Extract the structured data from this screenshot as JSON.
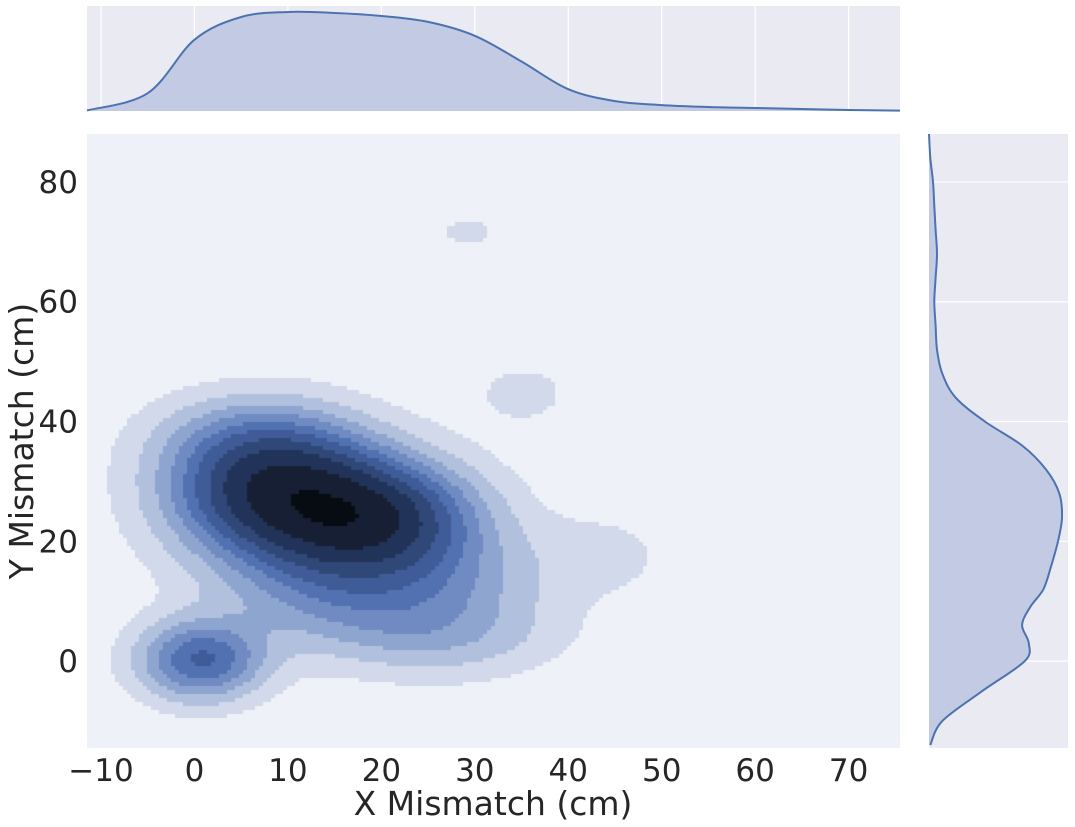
{
  "chart_data": {
    "type": "heatmap",
    "subtype": "joint-kde",
    "title": "",
    "xlabel": "X Mismatch (cm)",
    "ylabel": "Y Mismatch (cm)",
    "xlim": [
      -11.5,
      75.5
    ],
    "ylim": [
      -14.5,
      88
    ],
    "xticks": [
      -10,
      0,
      10,
      20,
      30,
      40,
      50,
      60,
      70
    ],
    "xtick_labels": [
      "−10",
      "0",
      "10",
      "20",
      "30",
      "40",
      "50",
      "60",
      "70"
    ],
    "yticks": [
      0,
      20,
      40,
      60,
      80
    ],
    "ytick_labels": [
      "0",
      "20",
      "40",
      "60",
      "80"
    ],
    "grid": true,
    "levels": 10,
    "density_peaks": [
      {
        "x": 8,
        "y": 30,
        "level": "highest"
      },
      {
        "x": 18.5,
        "y": 24,
        "level": "highest"
      },
      {
        "x": 0.5,
        "y": 0.5,
        "level": "high"
      },
      {
        "x": 29,
        "y": 72,
        "level": "low"
      },
      {
        "x": 35,
        "y": 45,
        "level": "low"
      }
    ],
    "x_marginal": {
      "x": [
        -11.5,
        -5,
        0,
        5,
        10,
        15,
        20,
        25,
        30,
        35,
        40,
        45,
        50,
        55,
        60,
        65,
        70,
        75.5
      ],
      "density": [
        0.005,
        0.18,
        0.72,
        0.95,
        1.0,
        0.99,
        0.96,
        0.9,
        0.76,
        0.5,
        0.22,
        0.1,
        0.06,
        0.04,
        0.03,
        0.02,
        0.01,
        0.004
      ]
    },
    "y_marginal": {
      "y": [
        -14,
        -10,
        -5,
        0,
        3,
        6,
        9,
        12,
        16,
        20,
        24,
        28,
        32,
        36,
        40,
        44,
        48,
        52,
        56,
        60,
        64,
        68,
        72,
        76,
        80,
        84,
        88
      ],
      "density": [
        0.01,
        0.1,
        0.4,
        0.72,
        0.75,
        0.7,
        0.76,
        0.86,
        0.92,
        0.97,
        1.0,
        0.98,
        0.88,
        0.7,
        0.42,
        0.2,
        0.1,
        0.06,
        0.05,
        0.04,
        0.05,
        0.06,
        0.05,
        0.04,
        0.03,
        0.01,
        0.0
      ]
    },
    "colors": {
      "line": "#4c72b0",
      "fill": "#c3cae3",
      "margin_bg": "#eaeaf2",
      "joint_bg": "#eef1f8",
      "grid": "#ffffff",
      "levels": [
        "#d1d9ea",
        "#b0c0dd",
        "#8ea5cf",
        "#6f8bc2",
        "#5271b0",
        "#3f5c98",
        "#304878",
        "#22335a",
        "#161f33",
        "#070b12"
      ]
    }
  }
}
